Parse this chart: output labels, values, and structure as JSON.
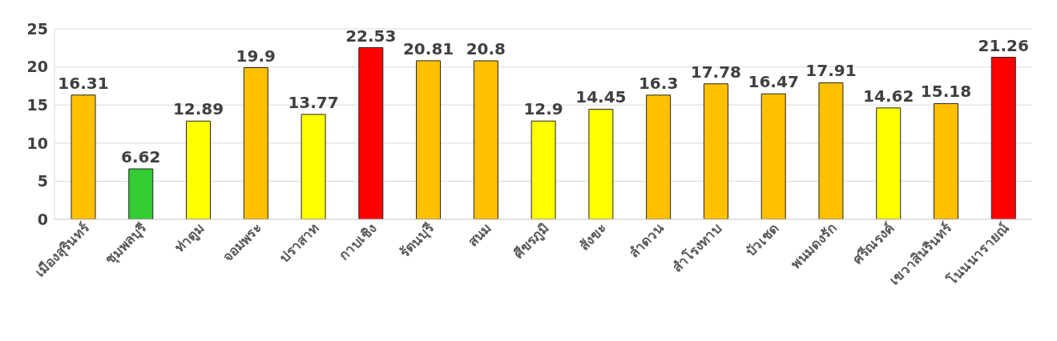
{
  "chart_data": {
    "type": "bar",
    "categories": [
      "เมืองสุรินทร์",
      "ชุมพลบุรี",
      "ท่าตูม",
      "จอมพระ",
      "ปราสาท",
      "กาบเชิง",
      "รัตนบุรี",
      "สนม",
      "ศีขรภูมิ",
      "สังขะ",
      "ลำดวน",
      "สำโรงทาบ",
      "บัวเชด",
      "พนมดงรัก",
      "ศรีณรงค์",
      "เขวาสินรินทร์",
      "โนนนารายณ์"
    ],
    "values": [
      16.31,
      6.62,
      12.89,
      19.9,
      13.77,
      22.53,
      20.81,
      20.8,
      12.9,
      14.45,
      16.3,
      17.78,
      16.47,
      17.91,
      14.62,
      15.18,
      21.26
    ],
    "colors": [
      "#ffc000",
      "#33cc33",
      "#ffff00",
      "#ffc000",
      "#ffff00",
      "#ff0000",
      "#ffc000",
      "#ffc000",
      "#ffff00",
      "#ffff00",
      "#ffc000",
      "#ffc000",
      "#ffc000",
      "#ffc000",
      "#ffff00",
      "#ffc000",
      "#ff0000"
    ],
    "ylim": [
      0,
      25
    ],
    "yticks": [
      0,
      5,
      10,
      15,
      20,
      25
    ],
    "grid": "y",
    "data_labels": true
  }
}
